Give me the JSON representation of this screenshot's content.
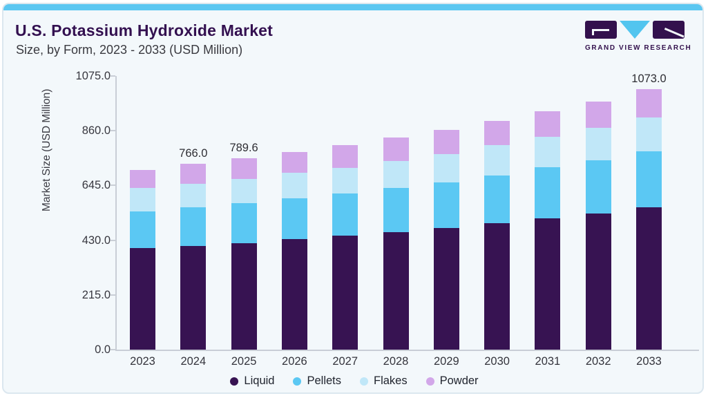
{
  "header": {
    "title": "U.S. Potassium Hydroxide Market",
    "subtitle": "Size, by Form, 2023 - 2033 (USD Million)"
  },
  "logo": {
    "text": "GRAND VIEW RESEARCH"
  },
  "colors": {
    "accent_strip": "#5bc7f1",
    "card_background": "#f3f8fb",
    "card_border": "#dbe7ef",
    "title_text": "#331050",
    "axis_line": "#c9ced6",
    "logo_purple": "#33114d",
    "logo_blue": "#52c5ef"
  },
  "chart_data": {
    "type": "bar",
    "stacked": true,
    "title": "U.S. Potassium Hydroxide Market",
    "subtitle": "Size, by Form, 2023 - 2033 (USD Million)",
    "xlabel": "",
    "ylabel": "Market Size (USD Million)",
    "categories": [
      "2023",
      "2024",
      "2025",
      "2026",
      "2027",
      "2028",
      "2029",
      "2030",
      "2031",
      "2032",
      "2033"
    ],
    "series": [
      {
        "name": "Liquid",
        "color": "#371352",
        "values": [
          417.0,
          427.0,
          439.0,
          455.0,
          470.0,
          484.0,
          501.0,
          522.0,
          541.5,
          562.0,
          586.0
        ]
      },
      {
        "name": "Pellets",
        "color": "#5bc8f3",
        "values": [
          152.5,
          159.0,
          166.0,
          169.0,
          173.0,
          183.0,
          189.0,
          197.0,
          210.0,
          218.0,
          232.0
        ]
      },
      {
        "name": "Flakes",
        "color": "#c0e7f8",
        "values": [
          96.7,
          98.0,
          100.0,
          105.0,
          106.5,
          111.5,
          117.0,
          123.0,
          125.0,
          134.0,
          140.0
        ]
      },
      {
        "name": "Powder",
        "color": "#d2a7e9",
        "values": [
          75.8,
          82.0,
          84.6,
          86.0,
          94.0,
          96.5,
          98.0,
          102.0,
          105.5,
          110.0,
          115.0
        ]
      }
    ],
    "totals": [
      742.0,
      766.0,
      789.6,
      815.0,
      843.5,
      875.0,
      905.0,
      944.0,
      982.0,
      1024.0,
      1073.0
    ],
    "total_labels": {
      "1": "766.0",
      "2": "789.6",
      "10": "1073.0"
    },
    "yticks": [
      0,
      215,
      430,
      645,
      860,
      1075
    ],
    "ytick_labels": [
      "0.0",
      "215.0",
      "430.0",
      "645.0",
      "860.0",
      "1075.0"
    ],
    "ylim": [
      0,
      1075
    ],
    "bar_scale_max": 1128,
    "grid": false,
    "legend_position": "bottom"
  }
}
